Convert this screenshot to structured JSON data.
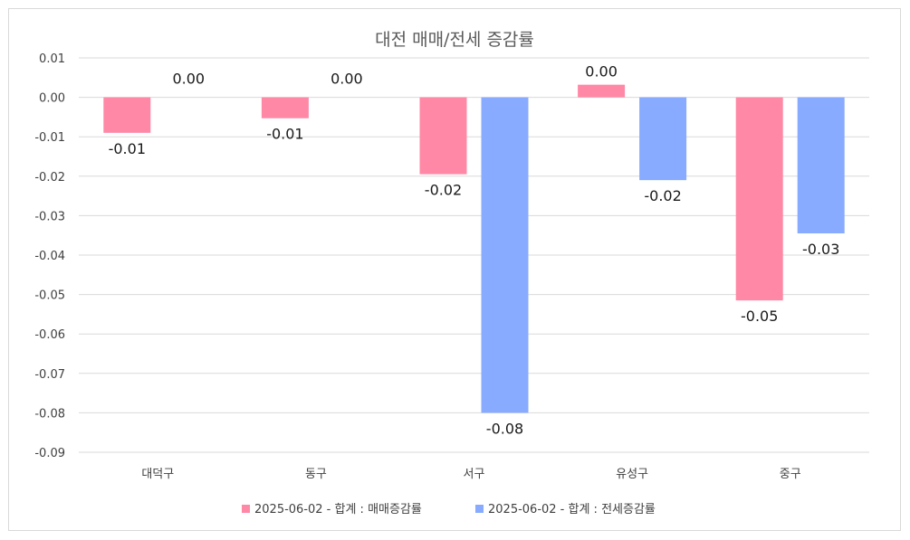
{
  "chart_data": {
    "type": "bar",
    "title": "대전 매매/전세 증감률",
    "xlabel": "",
    "ylabel": "",
    "categories": [
      "대덕구",
      "동구",
      "서구",
      "유성구",
      "중구"
    ],
    "ylim": [
      -0.09,
      0.01
    ],
    "yticks": [
      "0.01",
      "0.00",
      "-0.01",
      "-0.02",
      "-0.03",
      "-0.04",
      "-0.05",
      "-0.06",
      "-0.07",
      "-0.08",
      "-0.09"
    ],
    "grid": true,
    "legend_position": "bottom",
    "series": [
      {
        "name": "2025-06-02 - 합계 : 매매증감률",
        "color": "#ff88a6",
        "values": [
          -0.009,
          -0.0053,
          -0.0195,
          0.0032,
          -0.0515
        ],
        "labels": [
          "-0.01",
          "-0.01",
          "-0.02",
          "0.00",
          "-0.05"
        ]
      },
      {
        "name": "2025-06-02 - 합계 : 전세증감률",
        "color": "#88aaff",
        "values": [
          0.0,
          0.0,
          -0.08,
          -0.021,
          -0.0345
        ],
        "labels": [
          "0.00",
          "0.00",
          "-0.08",
          "-0.02",
          "-0.03"
        ]
      }
    ]
  }
}
